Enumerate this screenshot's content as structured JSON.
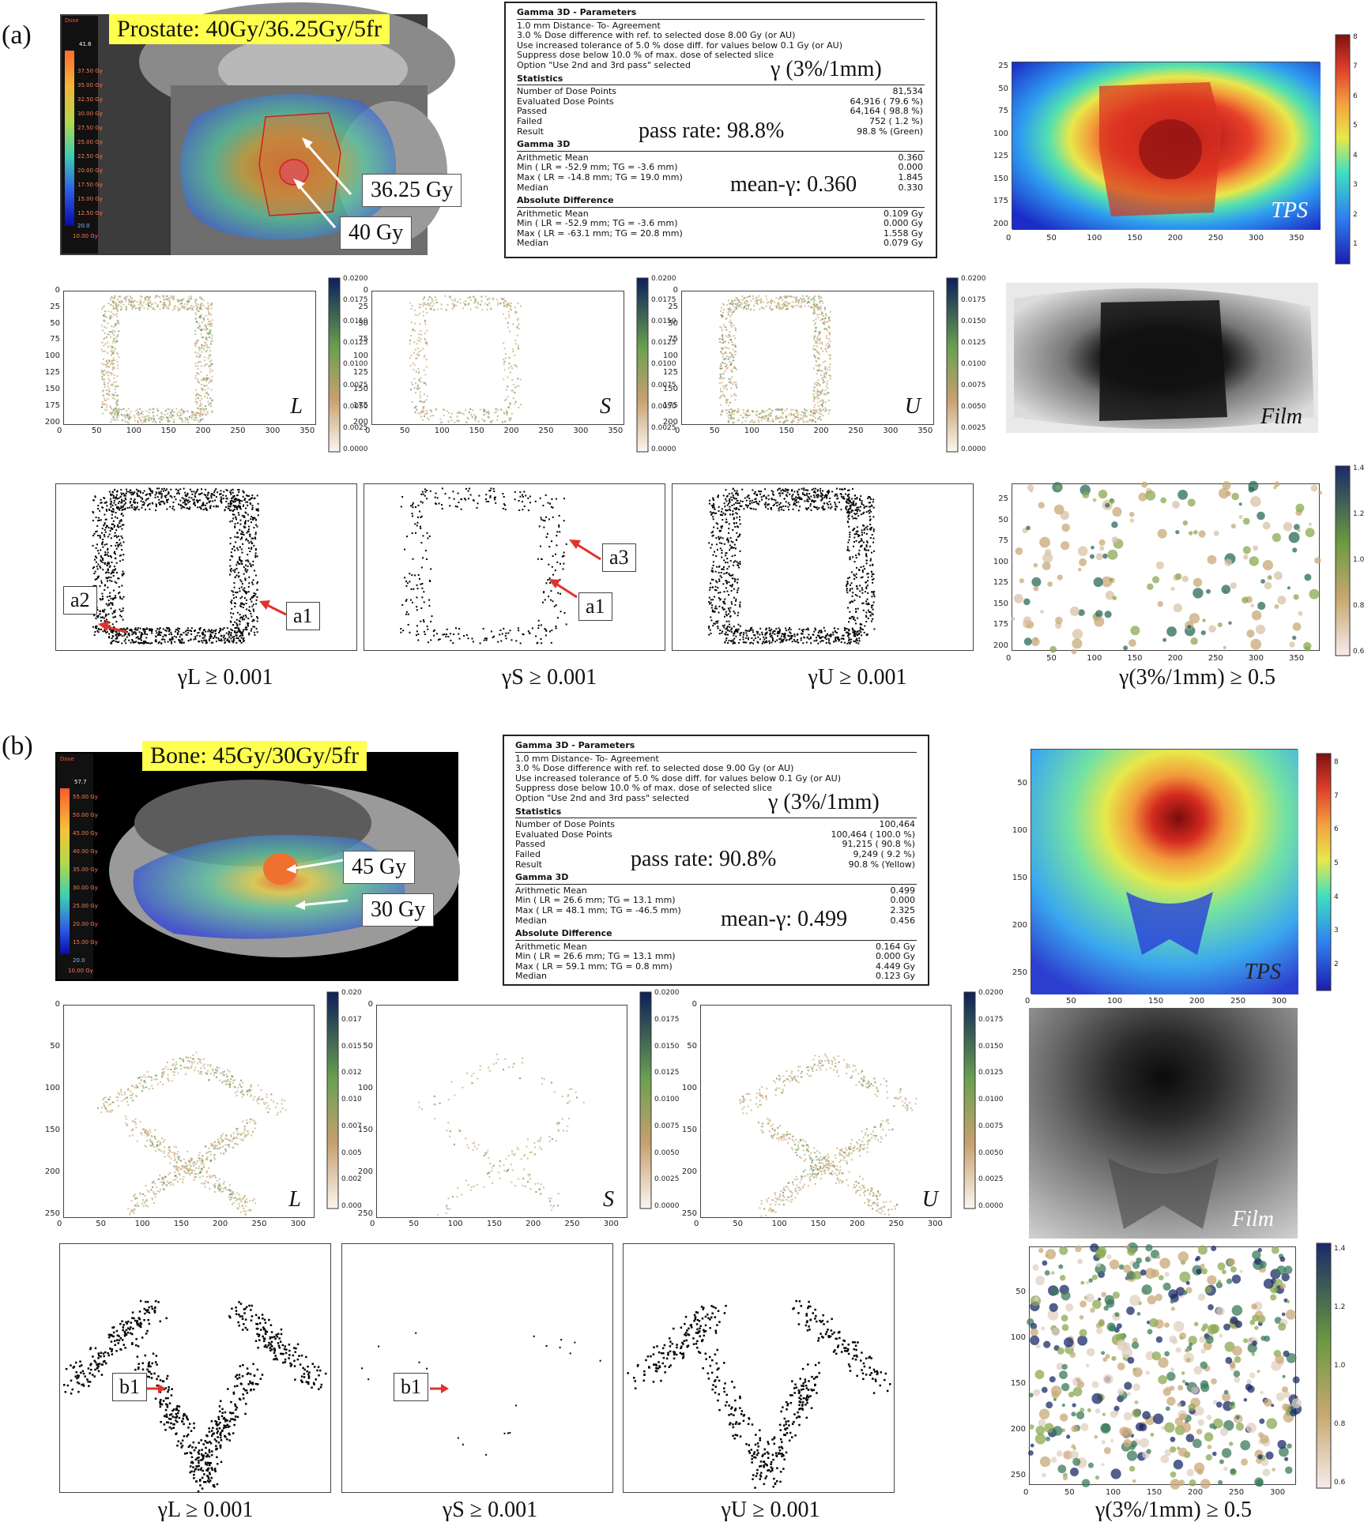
{
  "panel_a": {
    "label": "(a)",
    "title": "Prostate: 40Gy/36.25Gy/5fr",
    "callouts": [
      "36.25 Gy",
      "40 Gy"
    ],
    "dose_legend_top": "41.6",
    "dose_legend_header": "Dose",
    "dose_legend_items": [
      "37.50 Gy",
      "35.00 Gy",
      "32.50 Gy",
      "30.00 Gy",
      "27.50 Gy",
      "25.00 Gy",
      "22.50 Gy",
      "20.00 Gy",
      "17.50 Gy",
      "15.00 Gy",
      "12.50 Gy"
    ],
    "dose_legend_bottom": [
      "20.0",
      "10.00 Gy"
    ],
    "report": {
      "title": "Gamma 3D - Parameters",
      "params": [
        "1.0 mm Distance- To- Agreement",
        "3.0 % Dose difference with ref. to   selected dose 8.00 Gy (or AU)",
        "Use increased tolerance of 5.0 % dose diff. for values below 0.1 Gy (or AU)",
        "Suppress dose below 10.0 % of max. dose of selected slice",
        "Option \"Use 2nd and 3rd pass\" selected"
      ],
      "stats_title": "Statistics",
      "stats": [
        [
          "Number of Dose Points",
          "81,534"
        ],
        [
          "Evaluated Dose Points",
          "64,916  ( 79.6  %)"
        ],
        [
          "Passed",
          "64,164  ( 98.8  %)"
        ],
        [
          "Failed",
          "752  ( 1.2  %)"
        ],
        [
          "Result",
          "98.8  %  (Green)"
        ]
      ],
      "g3d_title": "Gamma 3D",
      "g3d": [
        [
          "Arithmetic Mean",
          "0.360"
        ],
        [
          "Min  ( LR  = -52.9 mm;  TG  = -3.6 mm)",
          "0.000"
        ],
        [
          "Max  ( LR  = -14.8 mm;  TG  = 19.0 mm)",
          "1.845"
        ],
        [
          "Median",
          "0.330"
        ]
      ],
      "abs_title": "Absolute Difference",
      "abs": [
        [
          "Arithmetic Mean",
          "0.109   Gy"
        ],
        [
          "Min  ( LR  = -52.9 mm;  TG  = -3.6 mm)",
          "0.000   Gy"
        ],
        [
          "Max  ( LR  = -63.1 mm;  TG  = 20.8 mm)",
          "1.558   Gy"
        ],
        [
          "Median",
          "0.079   Gy"
        ]
      ],
      "gamma_label": "γ (3%/1mm)",
      "pass_rate": "pass rate: 98.8%",
      "mean_gamma": "mean-γ: 0.360"
    },
    "tps_label": "TPS",
    "film_label": "Film",
    "map_tags": [
      "L",
      "S",
      "U"
    ],
    "cbar_ticks_small": [
      "0.0200",
      "0.0175",
      "0.0150",
      "0.0125",
      "0.0100",
      "0.0075",
      "0.0050",
      "0.0025",
      "0.0000"
    ],
    "cbar_ticks_tps": [
      "8",
      "7",
      "6",
      "5",
      "4",
      "3",
      "2",
      "1"
    ],
    "cbar_ticks_gamma": [
      "1.4",
      "1.2",
      "1.0",
      "0.8",
      "0.6"
    ],
    "x_ticks": [
      "0",
      "50",
      "100",
      "150",
      "200",
      "250",
      "300",
      "350"
    ],
    "y_ticks": [
      "0",
      "25",
      "50",
      "75",
      "100",
      "125",
      "150",
      "175",
      "200"
    ],
    "tps_y_ticks": [
      "25",
      "50",
      "75",
      "100",
      "125",
      "150",
      "175",
      "200"
    ],
    "tps_x_ticks": [
      "0",
      "50",
      "100",
      "150",
      "200",
      "250",
      "300",
      "350"
    ],
    "binary_labels": [
      [
        "a2",
        "a1"
      ],
      [
        "a3",
        "a1"
      ]
    ],
    "captions": [
      "γL ≥ 0.001",
      "γS ≥ 0.001",
      "γU ≥ 0.001",
      "γ(3%/1mm) ≥ 0.5"
    ]
  },
  "panel_b": {
    "label": "(b)",
    "title": "Bone: 45Gy/30Gy/5fr",
    "callouts": [
      "45 Gy",
      "30 Gy"
    ],
    "dose_legend_top": "57.7",
    "dose_legend_header": "Dose",
    "dose_legend_items": [
      "55.00 Gy",
      "50.00 Gy",
      "45.00 Gy",
      "40.00 Gy",
      "35.00 Gy",
      "30.00 Gy",
      "25.00 Gy",
      "20.00 Gy",
      "15.00 Gy"
    ],
    "dose_legend_bottom": [
      "20.0",
      "10.00 Gy"
    ],
    "report": {
      "title": "Gamma 3D - Parameters",
      "params": [
        "1.0 mm Distance- To- Agreement",
        "3.0 % Dose difference with ref. to   selected dose 9.00 Gy (or AU)",
        "Use increased tolerance of 5.0 % dose diff. for values below 0.1 Gy (or AU)",
        "Suppress dose below 10.0 % of max. dose of selected slice",
        "Option \"Use 2nd and 3rd pass\" selected"
      ],
      "stats_title": "Statistics",
      "stats": [
        [
          "Number of Dose Points",
          "100,464"
        ],
        [
          "Evaluated Dose Points",
          "100,464  ( 100.0  %)"
        ],
        [
          "Passed",
          "91,215  ( 90.8  %)"
        ],
        [
          "Failed",
          "9,249  ( 9.2  %)"
        ],
        [
          "Result",
          "90.8  %  (Yellow)"
        ]
      ],
      "g3d_title": "Gamma 3D",
      "g3d": [
        [
          "Arithmetic Mean",
          "0.499"
        ],
        [
          "Min  ( LR  = 26.6 mm;  TG  = 13.1 mm)",
          "0.000"
        ],
        [
          "Max  ( LR  = 48.1 mm;  TG  = -46.5 mm)",
          "2.325"
        ],
        [
          "Median",
          "0.456"
        ]
      ],
      "abs_title": "Absolute Difference",
      "abs": [
        [
          "Arithmetic Mean",
          "0.164   Gy"
        ],
        [
          "Min  ( LR  = 26.6 mm;  TG  = 13.1 mm)",
          "0.000   Gy"
        ],
        [
          "Max  ( LR  = 59.1 mm;  TG  = 0.8 mm)",
          "4.449   Gy"
        ],
        [
          "Median",
          "0.123   Gy"
        ]
      ],
      "gamma_label": "γ (3%/1mm)",
      "pass_rate": "pass rate: 90.8%",
      "mean_gamma": "mean-γ: 0.499"
    },
    "tps_label": "TPS",
    "film_label": "Film",
    "map_tags": [
      "L",
      "S",
      "U"
    ],
    "cbar_ticks_small": [
      "0.0200",
      "0.0175",
      "0.0150",
      "0.0125",
      "0.0100",
      "0.0075",
      "0.0050",
      "0.0025",
      "0.0000"
    ],
    "cbar_ticks_small_L": [
      "0.020",
      "0.017",
      "0.015",
      "0.012",
      "0.010",
      "0.007",
      "0.005",
      "0.002",
      "0.000"
    ],
    "cbar_ticks_tps": [
      "8",
      "7",
      "6",
      "5",
      "4",
      "3",
      "2"
    ],
    "cbar_ticks_gamma": [
      "1.4",
      "1.2",
      "1.0",
      "0.8",
      "0.6"
    ],
    "x_ticks": [
      "0",
      "50",
      "100",
      "150",
      "200",
      "250",
      "300"
    ],
    "y_ticks": [
      "0",
      "50",
      "100",
      "150",
      "200",
      "250"
    ],
    "tps_y_ticks": [
      "50",
      "100",
      "150",
      "200",
      "250"
    ],
    "binary_labels": [
      [
        "b1"
      ],
      [
        "b1"
      ]
    ],
    "captions": [
      "γL ≥ 0.001",
      "γS ≥ 0.001",
      "γU ≥ 0.001",
      "γ(3%/1mm) ≥ 0.5"
    ]
  },
  "colors": {
    "yellow_title": "#ffff4d",
    "arrow_red": "#e0332b",
    "callout_arrow": "#ffffff"
  }
}
